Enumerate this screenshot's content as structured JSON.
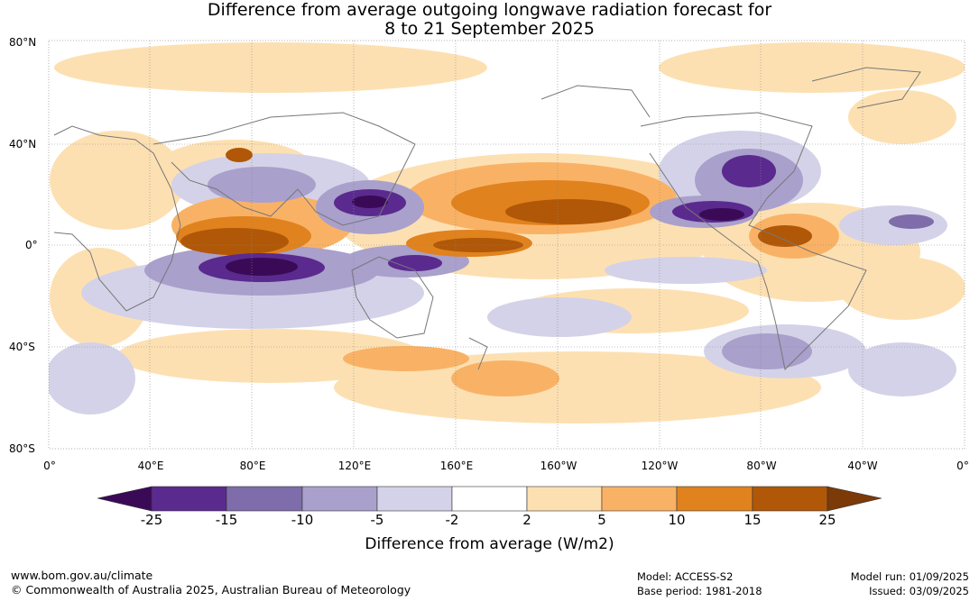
{
  "title_line1": "Difference from average outgoing longwave radiation forecast for",
  "title_line2": "8 to 21 September 2025",
  "lat_labels": [
    "80°N",
    "40°N",
    "0°",
    "40°S",
    "80°S"
  ],
  "lon_labels": [
    "0°",
    "40°E",
    "80°E",
    "120°E",
    "160°E",
    "160°W",
    "120°W",
    "80°W",
    "40°W",
    "0°"
  ],
  "colorbar": {
    "title": "Difference from average (W/m2)",
    "ticks": [
      "-25",
      "-15",
      "-10",
      "-5",
      "-2",
      "2",
      "5",
      "10",
      "15",
      "25"
    ],
    "colors": [
      "#3b0a57",
      "#5b2a8e",
      "#7e6daa",
      "#a9a0cc",
      "#d4d2e8",
      "#ffffff",
      "#fde0b2",
      "#f9b265",
      "#e0821e",
      "#b05808",
      "#7b3a08"
    ]
  },
  "footer": {
    "url": "www.bom.gov.au/climate",
    "copyright": "© Commonwealth of Australia 2025, Australian Bureau of Meteorology",
    "model": "Model: ACCESS-S2",
    "base_period": "Base period: 1981-2018",
    "model_run": "Model run: 01/09/2025",
    "issued": "Issued: 03/09/2025"
  }
}
